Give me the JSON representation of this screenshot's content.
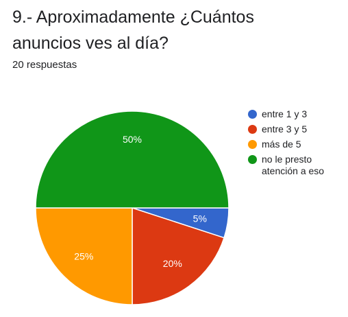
{
  "question": {
    "title": "9.- Aproximadamente ¿Cuántos anuncios ves al día?",
    "responses": "20 respuestas"
  },
  "chart_data": {
    "type": "pie",
    "categories": [
      "entre 1 y 3",
      "entre 3 y 5",
      "más de 5",
      "no le presto atención a eso"
    ],
    "values": [
      5,
      20,
      25,
      50
    ],
    "data_labels": [
      "5%",
      "20%",
      "25%",
      "50%"
    ],
    "colors": [
      "#3366cc",
      "#dc3912",
      "#ff9900",
      "#109618"
    ],
    "legend_position": "right",
    "start": "3 o'clock, clockwise"
  }
}
